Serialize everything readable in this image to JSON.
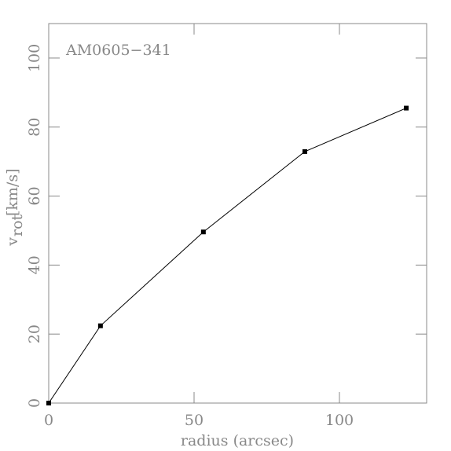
{
  "chart_data": {
    "type": "line",
    "title": "AM0605−341",
    "xlabel": "radius (arcsec)",
    "ylabel": "v",
    "ylabel_sub": "rot",
    "ylabel_unit": "[km/s]",
    "x": [
      0,
      17.8,
      53.2,
      88.1,
      123
    ],
    "values": [
      0,
      22.4,
      49.6,
      72.9,
      85.5
    ],
    "color": "#000000",
    "xlim": [
      0,
      130
    ],
    "xticks": [
      0,
      50,
      100
    ],
    "ylim": [
      0,
      110
    ],
    "yticks": [
      0,
      20,
      40,
      60,
      80,
      100
    ]
  }
}
